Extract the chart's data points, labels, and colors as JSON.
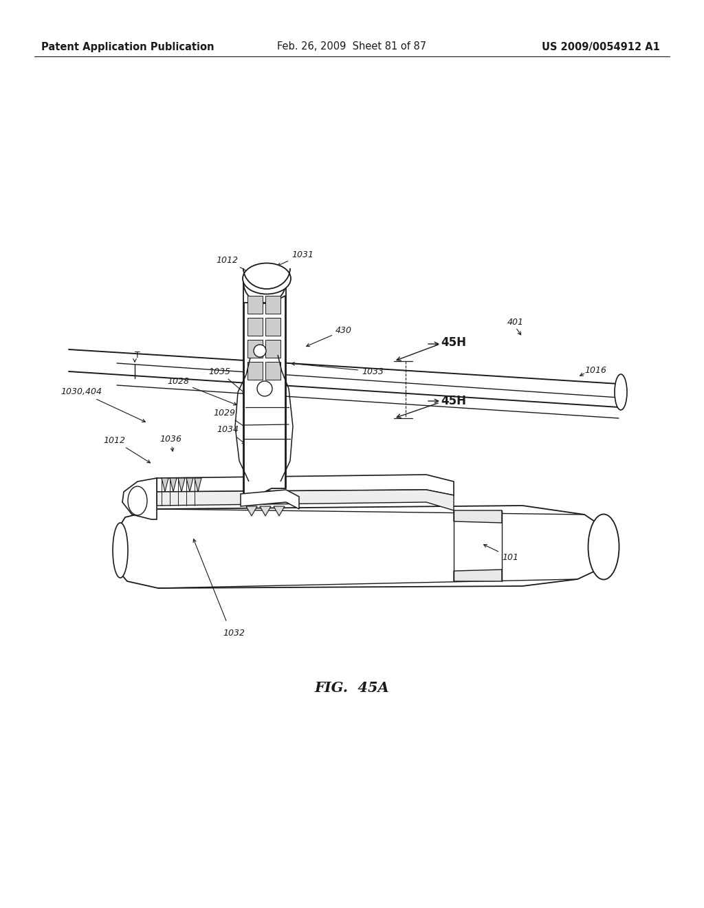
{
  "bg_color": "#ffffff",
  "header_left": "Patent Application Publication",
  "header_mid": "Feb. 26, 2009  Sheet 81 of 87",
  "header_right": "US 2009/0054912 A1",
  "fig_label": "FIG.  45A",
  "line_color": "#1a1a1a",
  "arrow_color": "#1a1a1a",
  "text_color": "#1a1a1a",
  "font_size_header": 10.5,
  "font_size_label": 9.0,
  "font_size_fig": 15
}
